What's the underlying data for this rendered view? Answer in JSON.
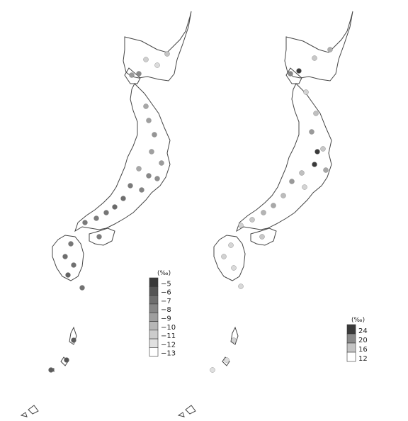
{
  "maps": [
    {
      "id": "left",
      "legend": {
        "unit": "(‰)",
        "levels": [
          {
            "label": "−5",
            "color": "#3a3a3a"
          },
          {
            "label": "−6",
            "color": "#555555"
          },
          {
            "label": "−7",
            "color": "#6e6e6e"
          },
          {
            "label": "−8",
            "color": "#868686"
          },
          {
            "label": "−9",
            "color": "#9e9e9e"
          },
          {
            "label": "−10",
            "color": "#b6b6b6"
          },
          {
            "label": "−11",
            "color": "#cccccc"
          },
          {
            "label": "−12",
            "color": "#e0e0e0"
          },
          {
            "label": "−13",
            "color": "#ffffff"
          }
        ]
      }
    },
    {
      "id": "right",
      "legend": {
        "unit": "(‰)",
        "levels": [
          {
            "label": "24",
            "color": "#3a3a3a"
          },
          {
            "label": "20",
            "color": "#8a8a8a"
          },
          {
            "label": "16",
            "color": "#c4c4c4"
          },
          {
            "label": "12",
            "color": "#ffffff"
          }
        ]
      }
    }
  ]
}
